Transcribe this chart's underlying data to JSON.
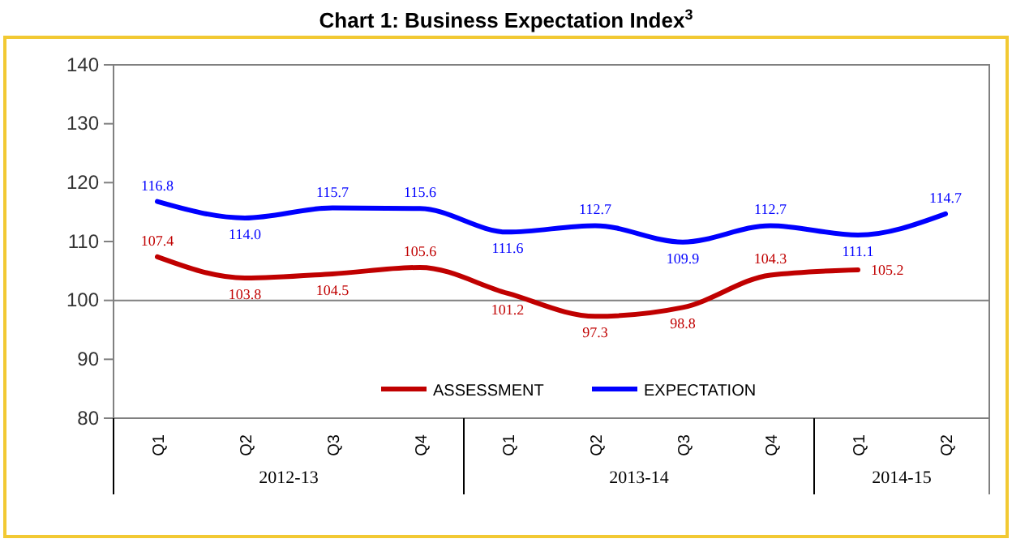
{
  "chart_data": {
    "type": "line",
    "title": "Chart 1: Business Expectation Index$^{3}$",
    "categories": [
      "Q1",
      "Q2",
      "Q3",
      "Q4",
      "Q1",
      "Q2",
      "Q3",
      "Q4",
      "Q1",
      "Q2"
    ],
    "series": [
      {
        "name": "ASSESSMENT",
        "color": "#c00000",
        "values": [
          107.4,
          103.8,
          104.5,
          105.6,
          101.2,
          97.3,
          98.8,
          104.3,
          105.2,
          null
        ],
        "value_labels": [
          "107.4",
          "103.8",
          "104.5",
          "105.6",
          "101.2",
          "97.3",
          "98.8",
          "104.3",
          "105.2",
          null
        ]
      },
      {
        "name": "EXPECTATION",
        "color": "#0000ff",
        "values": [
          116.8,
          114.0,
          115.7,
          115.6,
          111.6,
          112.7,
          109.9,
          112.7,
          111.1,
          114.7
        ],
        "value_labels": [
          "116.8",
          "114.0",
          "115.7",
          "115.6",
          "111.6",
          "112.7",
          "109.9",
          "112.7",
          "111.1",
          "114.7"
        ]
      }
    ],
    "ylim": [
      80,
      140
    ],
    "yticks": [
      80,
      90,
      100,
      110,
      120,
      130,
      140
    ],
    "ref_lines": [
      {
        "axis": "y",
        "value": 100,
        "color": "#808080"
      }
    ],
    "annotations": [
      "2012-13",
      "2013-14",
      "2014-15"
    ],
    "legend": "bottom",
    "grid": false,
    "marker": "none",
    "line_style": "solid"
  }
}
